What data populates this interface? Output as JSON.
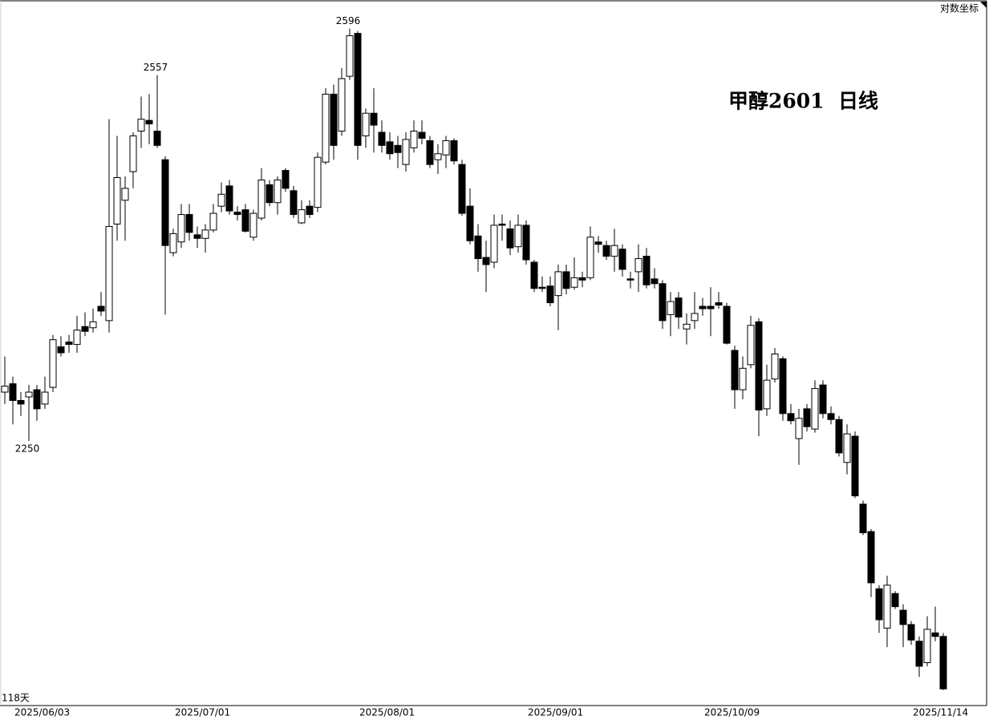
{
  "chart_data": {
    "type": "candlestick",
    "title": "甲醇2601  日线",
    "count_label": "118天",
    "log_scale_button": "对数坐标",
    "log_scale": false,
    "up_color": "#ffffff",
    "down_color": "#000000",
    "ylim": [
      2028,
      2620
    ],
    "categories": [
      "2025/06/03",
      null,
      null,
      null,
      null,
      null,
      null,
      null,
      null,
      null,
      null,
      null,
      null,
      null,
      null,
      null,
      null,
      null,
      null,
      null,
      "2025/07/01",
      null,
      null,
      null,
      null,
      null,
      null,
      null,
      null,
      null,
      null,
      null,
      null,
      null,
      null,
      null,
      null,
      null,
      null,
      null,
      null,
      null,
      null,
      "2025/08/01",
      null,
      null,
      null,
      null,
      null,
      null,
      null,
      null,
      null,
      null,
      null,
      null,
      null,
      null,
      null,
      null,
      null,
      null,
      null,
      null,
      "2025/09/01",
      null,
      null,
      null,
      null,
      null,
      null,
      null,
      null,
      null,
      null,
      null,
      null,
      null,
      null,
      null,
      null,
      null,
      null,
      null,
      null,
      null,
      "2025/10/09",
      null,
      null,
      null,
      null,
      null,
      null,
      null,
      null,
      null,
      null,
      null,
      null,
      null,
      null,
      null,
      null,
      null,
      null,
      null,
      null,
      null,
      null,
      null,
      null,
      null,
      "2025/11/14",
      null,
      null,
      null,
      null,
      null
    ],
    "open": [
      2291,
      2298,
      2284,
      2287,
      2293,
      2281,
      2295,
      2329,
      2333,
      2331,
      2346,
      2345,
      2363,
      2351,
      2432,
      2452,
      2476,
      2510,
      2519,
      2510,
      2486,
      2408,
      2417,
      2440,
      2423,
      2420,
      2427,
      2447,
      2464,
      2442,
      2444,
      2421,
      2437,
      2465,
      2450,
      2477,
      2460,
      2433,
      2447,
      2446,
      2484,
      2541,
      2510,
      2556,
      2592,
      2506,
      2525,
      2509,
      2501,
      2498,
      2482,
      2496,
      2509,
      2502,
      2486,
      2490,
      2502,
      2482,
      2447,
      2422,
      2404,
      2400,
      2432,
      2428,
      2413,
      2431,
      2400,
      2379,
      2380,
      2372,
      2392,
      2379,
      2387,
      2387,
      2417,
      2414,
      2405,
      2411,
      2386,
      2392,
      2405,
      2386,
      2382,
      2356,
      2370,
      2344,
      2351,
      2363,
      2363,
      2366,
      2363,
      2326,
      2293,
      2314,
      2350,
      2277,
      2302,
      2319,
      2273,
      2252,
      2277,
      2260,
      2297,
      2273,
      2268,
      2232,
      2254,
      2197,
      2174,
      2126,
      2093,
      2122,
      2108,
      2096,
      2082,
      2064,
      2089,
      2086
    ],
    "high": [
      2321,
      2304,
      2291,
      2297,
      2297,
      2304,
      2339,
      2338,
      2339,
      2355,
      2358,
      2361,
      2375,
      2520,
      2506,
      2472,
      2509,
      2539,
      2541,
      2557,
      2489,
      2428,
      2449,
      2449,
      2430,
      2432,
      2449,
      2467,
      2469,
      2447,
      2449,
      2444,
      2479,
      2469,
      2472,
      2479,
      2464,
      2452,
      2452,
      2492,
      2546,
      2549,
      2563,
      2596,
      2594,
      2529,
      2546,
      2519,
      2509,
      2506,
      2509,
      2519,
      2519,
      2506,
      2499,
      2506,
      2504,
      2486,
      2462,
      2432,
      2418,
      2440,
      2440,
      2435,
      2440,
      2435,
      2402,
      2388,
      2388,
      2398,
      2398,
      2404,
      2392,
      2430,
      2422,
      2418,
      2428,
      2415,
      2392,
      2415,
      2412,
      2395,
      2385,
      2375,
      2375,
      2357,
      2375,
      2370,
      2379,
      2375,
      2366,
      2330,
      2321,
      2355,
      2353,
      2314,
      2328,
      2321,
      2281,
      2277,
      2281,
      2301,
      2301,
      2279,
      2271,
      2264,
      2258,
      2200,
      2176,
      2129,
      2137,
      2124,
      2113,
      2099,
      2086,
      2103,
      2111,
      2089
    ],
    "low": [
      2281,
      2264,
      2271,
      2250,
      2267,
      2277,
      2291,
      2321,
      2324,
      2324,
      2338,
      2341,
      2355,
      2341,
      2418,
      2418,
      2462,
      2496,
      2499,
      2496,
      2356,
      2405,
      2412,
      2418,
      2412,
      2408,
      2425,
      2442,
      2440,
      2435,
      2425,
      2418,
      2435,
      2447,
      2440,
      2459,
      2437,
      2432,
      2437,
      2442,
      2482,
      2486,
      2506,
      2553,
      2486,
      2496,
      2492,
      2492,
      2486,
      2479,
      2476,
      2492,
      2499,
      2479,
      2474,
      2479,
      2482,
      2439,
      2415,
      2392,
      2375,
      2395,
      2418,
      2406,
      2408,
      2398,
      2375,
      2375,
      2363,
      2343,
      2373,
      2377,
      2379,
      2385,
      2408,
      2402,
      2392,
      2388,
      2378,
      2375,
      2378,
      2378,
      2344,
      2338,
      2344,
      2331,
      2344,
      2355,
      2338,
      2361,
      2331,
      2277,
      2285,
      2311,
      2254,
      2271,
      2299,
      2267,
      2264,
      2230,
      2258,
      2257,
      2269,
      2264,
      2237,
      2222,
      2202,
      2171,
      2119,
      2089,
      2077,
      2109,
      2077,
      2079,
      2052,
      2061,
      2082,
      2041
    ],
    "close": [
      2296,
      2284,
      2281,
      2291,
      2277,
      2291,
      2335,
      2324,
      2331,
      2343,
      2342,
      2350,
      2359,
      2430,
      2471,
      2462,
      2506,
      2520,
      2516,
      2498,
      2414,
      2424,
      2440,
      2425,
      2420,
      2427,
      2441,
      2457,
      2443,
      2440,
      2426,
      2441,
      2469,
      2450,
      2469,
      2462,
      2440,
      2444,
      2440,
      2488,
      2541,
      2498,
      2554,
      2590,
      2498,
      2525,
      2515,
      2498,
      2491,
      2492,
      2503,
      2510,
      2504,
      2482,
      2491,
      2502,
      2485,
      2441,
      2418,
      2403,
      2398,
      2431,
      2431,
      2412,
      2431,
      2402,
      2378,
      2378,
      2366,
      2392,
      2378,
      2387,
      2385,
      2421,
      2415,
      2405,
      2414,
      2394,
      2385,
      2403,
      2381,
      2382,
      2351,
      2367,
      2354,
      2348,
      2357,
      2361,
      2361,
      2364,
      2332,
      2293,
      2311,
      2347,
      2276,
      2301,
      2323,
      2273,
      2267,
      2269,
      2262,
      2294,
      2273,
      2268,
      2240,
      2256,
      2204,
      2173,
      2131,
      2100,
      2129,
      2111,
      2096,
      2083,
      2061,
      2092,
      2086,
      2042
    ]
  }
}
